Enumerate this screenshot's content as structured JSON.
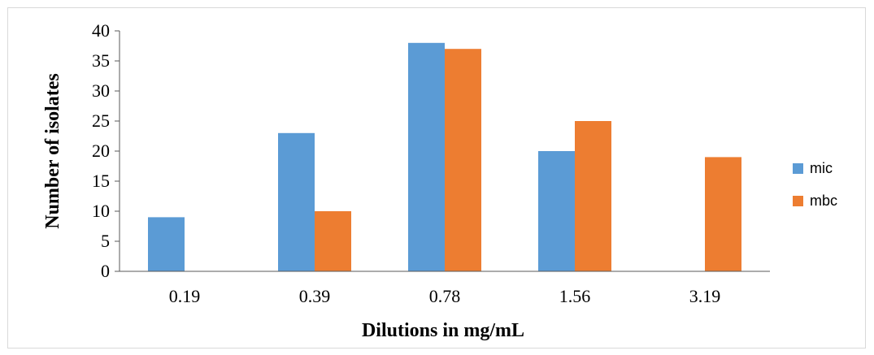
{
  "chart_data": {
    "type": "bar",
    "categories": [
      "0.19",
      "0.39",
      "0.78",
      "1.56",
      "3.19"
    ],
    "series": [
      {
        "name": "mic",
        "values": [
          9,
          23,
          38,
          20,
          0
        ],
        "color": "#5b9bd5"
      },
      {
        "name": "mbc",
        "values": [
          0,
          10,
          37,
          25,
          19
        ],
        "color": "#ed7d31"
      }
    ],
    "xlabel": "Dilutions in mg/mL",
    "ylabel": "Number of isolates",
    "ylim": [
      0,
      40
    ],
    "yticks": [
      "0",
      "5",
      "10",
      "15",
      "20",
      "25",
      "30",
      "35",
      "40"
    ],
    "grid": false,
    "legend_position": "right"
  }
}
